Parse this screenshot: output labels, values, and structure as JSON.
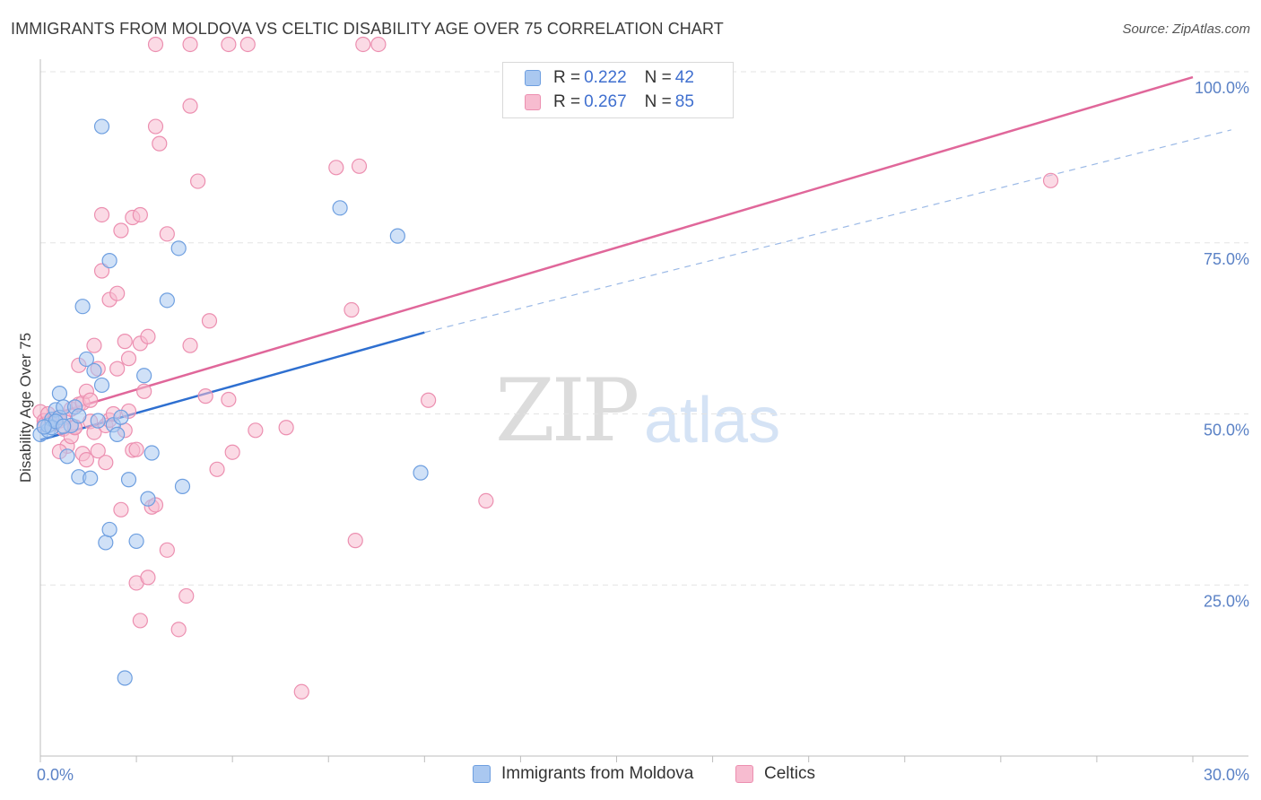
{
  "header": {
    "title": "IMMIGRANTS FROM MOLDOVA VS CELTIC DISABILITY AGE OVER 75 CORRELATION CHART",
    "source": "Source: ZipAtlas.com"
  },
  "watermark": {
    "zip": "ZIP",
    "atlas": "atlas"
  },
  "legend_top": {
    "rows": [
      {
        "r_label": "R =",
        "r_value": "0.222",
        "n_label": "N =",
        "n_value": "42"
      },
      {
        "r_label": "R =",
        "r_value": "0.267",
        "n_label": "N =",
        "n_value": "85"
      }
    ]
  },
  "legend_bottom": {
    "series1": "Immigrants from Moldova",
    "series2": "Celtics"
  },
  "colors": {
    "blue_fill": "#aac8f0",
    "blue_stroke": "#6e9fe0",
    "blue_line": "#2e6fd0",
    "pink_fill": "#f7bcd0",
    "pink_stroke": "#ec8fb0",
    "pink_line": "#e0679a",
    "tick_text": "#5b82c6",
    "grid": "#e3e3e3"
  },
  "chart_data": {
    "type": "scatter",
    "title": "IMMIGRANTS FROM MOLDOVA VS CELTIC DISABILITY AGE OVER 75 CORRELATION CHART",
    "xlabel": "",
    "ylabel": "Disability Age Over 75",
    "xlim": [
      0,
      30
    ],
    "ylim": [
      0,
      100
    ],
    "x_tick_labels": [
      "0.0%",
      "30.0%"
    ],
    "y_ticks": [
      25,
      50,
      75,
      100
    ],
    "y_tick_labels": [
      "25.0%",
      "50.0%",
      "75.0%",
      "100.0%"
    ],
    "grid": true,
    "legend_position": "bottom",
    "series": [
      {
        "name": "Immigrants from Moldova",
        "R": 0.222,
        "N": 42,
        "trend": {
          "x": [
            0,
            10
          ],
          "y": [
            46.2,
            61.9
          ],
          "extended_to": [
            31,
            91.5
          ]
        },
        "points": [
          [
            0.0,
            47.0
          ],
          [
            0.2,
            47.6
          ],
          [
            0.2,
            48.3
          ],
          [
            0.3,
            49.2
          ],
          [
            0.4,
            50.6
          ],
          [
            0.5,
            49.5
          ],
          [
            0.3,
            48.0
          ],
          [
            0.4,
            48.9
          ],
          [
            0.5,
            53.0
          ],
          [
            0.6,
            51.0
          ],
          [
            0.7,
            43.8
          ],
          [
            0.8,
            48.3
          ],
          [
            0.9,
            51.0
          ],
          [
            1.0,
            40.8
          ],
          [
            1.1,
            65.7
          ],
          [
            1.2,
            58.0
          ],
          [
            1.3,
            40.6
          ],
          [
            1.4,
            56.3
          ],
          [
            1.5,
            49.0
          ],
          [
            1.6,
            54.2
          ],
          [
            1.6,
            92.0
          ],
          [
            1.7,
            31.2
          ],
          [
            1.8,
            72.4
          ],
          [
            1.8,
            33.1
          ],
          [
            1.9,
            48.4
          ],
          [
            2.0,
            47.0
          ],
          [
            2.1,
            49.5
          ],
          [
            2.2,
            11.4
          ],
          [
            2.3,
            40.4
          ],
          [
            2.5,
            31.4
          ],
          [
            2.7,
            55.6
          ],
          [
            2.8,
            37.6
          ],
          [
            2.9,
            44.3
          ],
          [
            3.3,
            66.6
          ],
          [
            3.6,
            74.2
          ],
          [
            3.7,
            39.4
          ],
          [
            7.8,
            80.1
          ],
          [
            9.3,
            76.0
          ],
          [
            9.9,
            41.4
          ],
          [
            0.1,
            48.1
          ],
          [
            0.6,
            48.2
          ],
          [
            1.0,
            49.7
          ]
        ]
      },
      {
        "name": "Celtics",
        "R": 0.267,
        "N": 85,
        "trend": {
          "x": [
            0,
            30
          ],
          "y": [
            49.4,
            99.2
          ]
        },
        "points": [
          [
            0.0,
            50.3
          ],
          [
            0.1,
            49.0
          ],
          [
            0.1,
            48.4
          ],
          [
            0.2,
            50.0
          ],
          [
            0.3,
            48.6
          ],
          [
            0.4,
            49.3
          ],
          [
            0.5,
            49.0
          ],
          [
            0.6,
            49.4
          ],
          [
            0.6,
            47.8
          ],
          [
            0.7,
            45.3
          ],
          [
            0.8,
            50.7
          ],
          [
            0.8,
            46.7
          ],
          [
            0.9,
            48.1
          ],
          [
            1.0,
            57.1
          ],
          [
            1.0,
            51.4
          ],
          [
            1.1,
            44.2
          ],
          [
            1.1,
            51.6
          ],
          [
            1.2,
            43.3
          ],
          [
            1.2,
            53.3
          ],
          [
            1.3,
            48.9
          ],
          [
            1.4,
            47.3
          ],
          [
            1.4,
            60.0
          ],
          [
            1.5,
            56.6
          ],
          [
            1.5,
            44.6
          ],
          [
            1.6,
            70.9
          ],
          [
            1.6,
            79.1
          ],
          [
            1.7,
            48.3
          ],
          [
            1.7,
            42.9
          ],
          [
            1.8,
            66.7
          ],
          [
            1.8,
            49.1
          ],
          [
            1.9,
            50.0
          ],
          [
            2.0,
            67.6
          ],
          [
            2.0,
            56.6
          ],
          [
            2.1,
            76.8
          ],
          [
            2.1,
            36.0
          ],
          [
            2.2,
            60.6
          ],
          [
            2.2,
            47.6
          ],
          [
            2.3,
            50.4
          ],
          [
            2.3,
            58.1
          ],
          [
            2.4,
            78.7
          ],
          [
            2.4,
            44.7
          ],
          [
            2.5,
            25.3
          ],
          [
            2.5,
            44.8
          ],
          [
            2.6,
            79.1
          ],
          [
            2.6,
            60.3
          ],
          [
            2.6,
            19.8
          ],
          [
            2.7,
            53.3
          ],
          [
            2.8,
            26.1
          ],
          [
            2.8,
            61.3
          ],
          [
            2.9,
            36.4
          ],
          [
            3.0,
            92.0
          ],
          [
            3.0,
            36.7
          ],
          [
            3.1,
            89.5
          ],
          [
            3.3,
            76.3
          ],
          [
            3.3,
            30.1
          ],
          [
            3.6,
            18.5
          ],
          [
            3.8,
            23.4
          ],
          [
            3.9,
            60.0
          ],
          [
            3.9,
            95.0
          ],
          [
            4.1,
            84.0
          ],
          [
            4.3,
            52.6
          ],
          [
            4.4,
            63.6
          ],
          [
            4.6,
            41.9
          ],
          [
            4.9,
            52.1
          ],
          [
            5.0,
            44.4
          ],
          [
            5.6,
            47.6
          ],
          [
            6.4,
            48.0
          ],
          [
            6.8,
            9.4
          ],
          [
            7.7,
            86.0
          ],
          [
            8.1,
            65.2
          ],
          [
            8.2,
            31.5
          ],
          [
            8.3,
            86.2
          ],
          [
            10.1,
            52.0
          ],
          [
            11.6,
            37.3
          ],
          [
            26.3,
            84.1
          ],
          [
            3.0,
            104.0
          ],
          [
            3.9,
            104.0
          ],
          [
            4.9,
            104.0
          ],
          [
            5.4,
            104.0
          ],
          [
            8.4,
            104.0
          ],
          [
            8.8,
            104.0
          ],
          [
            0.3,
            48.5
          ],
          [
            0.9,
            48.0
          ],
          [
            1.3,
            52.0
          ],
          [
            0.5,
            44.5
          ]
        ]
      }
    ]
  }
}
